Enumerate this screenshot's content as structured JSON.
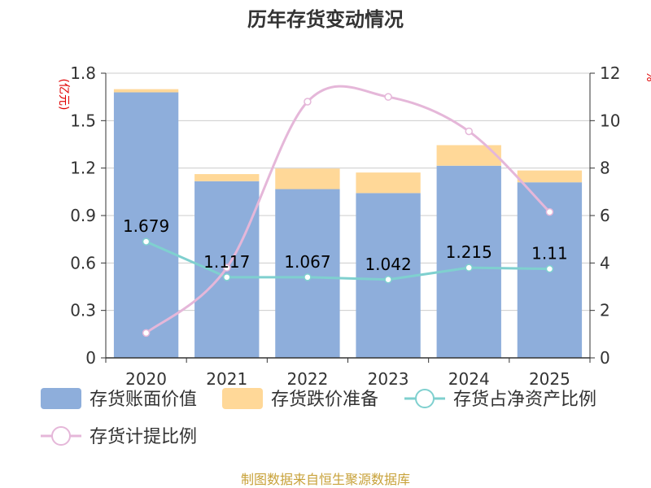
{
  "chart_data": {
    "type": "bar",
    "title": "历年存货变动情况",
    "categories": [
      "2020",
      "2021",
      "2022",
      "2023",
      "2024",
      "2025"
    ],
    "y_left": {
      "unit": "(亿元)",
      "range": [
        0,
        1.8
      ],
      "ticks": [
        "0",
        "0.3",
        "0.6",
        "0.9",
        "1.2",
        "1.5",
        "1.8"
      ]
    },
    "y_right": {
      "unit": "%",
      "range": [
        0,
        12
      ],
      "ticks": [
        "0",
        "2",
        "4",
        "6",
        "8",
        "10",
        "12"
      ]
    },
    "grid": true,
    "legend_position": "bottom",
    "series": [
      {
        "name": "存货账面价值",
        "type": "bar",
        "stack": "inventory",
        "axis": "left",
        "color": "#8eaedb",
        "values": [
          1.679,
          1.117,
          1.067,
          1.042,
          1.215,
          1.11
        ]
      },
      {
        "name": "存货跌价准备",
        "type": "bar",
        "stack": "inventory",
        "axis": "left",
        "color": "#ffd898",
        "values": [
          0.02,
          0.045,
          0.13,
          0.13,
          0.13,
          0.075
        ]
      },
      {
        "name": "存货占净资产比例",
        "type": "line",
        "axis": "right",
        "color": "#7fd0cf",
        "values": [
          4.9,
          3.4,
          3.4,
          3.3,
          3.8,
          3.75
        ]
      },
      {
        "name": "存货计提比例",
        "type": "line",
        "axis": "right",
        "color": "#e5b7d9",
        "values": [
          1.05,
          3.8,
          10.8,
          11.0,
          9.55,
          6.15
        ]
      }
    ],
    "data_labels": [
      "1.679",
      "1.117",
      "1.067",
      "1.042",
      "1.215",
      "1.11"
    ]
  },
  "source": "制图数据来自恒生聚源数据库"
}
